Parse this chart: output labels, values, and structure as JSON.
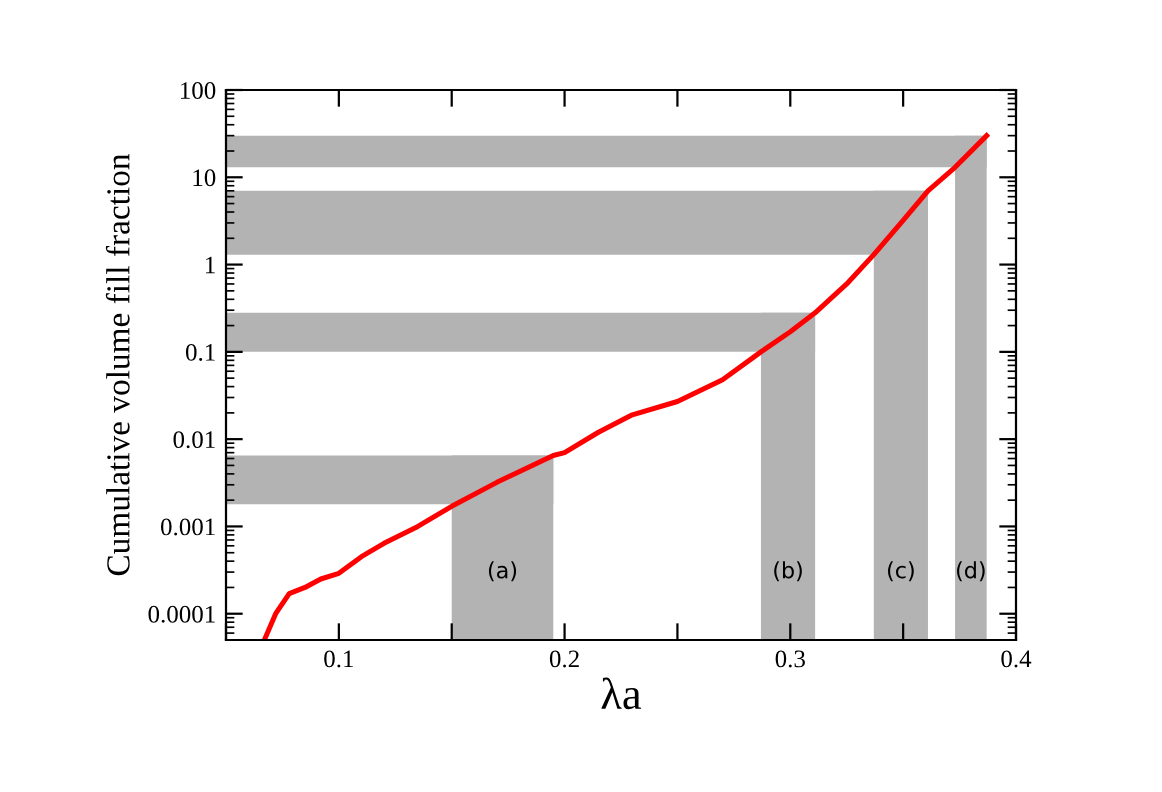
{
  "chart_data": {
    "type": "line",
    "xlabel": "λa",
    "ylabel": "Cumulative volume fill fraction",
    "log": "y",
    "xlim": [
      0.05,
      0.4
    ],
    "ylim": [
      5e-05,
      100
    ],
    "xticks": [
      {
        "value": 0.05,
        "label": null
      },
      0.1,
      {
        "value": 0.15,
        "label": null
      },
      0.2,
      {
        "value": 0.25,
        "label": null
      },
      0.3,
      {
        "value": 0.35,
        "label": null
      },
      0.4
    ],
    "yticks": [
      0.0001,
      0.001,
      0.01,
      0.1,
      1,
      10,
      100
    ],
    "grid": false,
    "legend": false,
    "marker": "none",
    "line_style": "solid",
    "series": [
      {
        "color": "#ff0000",
        "x": [
          0.067,
          0.072,
          0.078,
          0.085,
          0.092,
          0.1,
          0.11,
          0.12,
          0.135,
          0.15,
          0.17,
          0.195,
          0.2,
          0.215,
          0.23,
          0.25,
          0.27,
          0.287,
          0.3,
          0.311,
          0.325,
          0.337,
          0.35,
          0.361,
          0.373,
          0.387
        ],
        "values": [
          5e-05,
          0.0001,
          0.00017,
          0.0002,
          0.00025,
          0.00029,
          0.00045,
          0.00064,
          0.001,
          0.0017,
          0.0032,
          0.0065,
          0.007,
          0.012,
          0.019,
          0.027,
          0.048,
          0.1,
          0.17,
          0.28,
          0.6,
          1.3,
          3.2,
          7,
          13,
          30
        ]
      }
    ],
    "bands": [
      {
        "axis": "x",
        "from": 0.15,
        "to": 0.195,
        "label": "(a)",
        "color": "#b3b3b3"
      },
      {
        "axis": "x",
        "from": 0.287,
        "to": 0.311,
        "label": "(b)",
        "color": "#b3b3b3"
      },
      {
        "axis": "x",
        "from": 0.337,
        "to": 0.361,
        "label": "(c)",
        "color": "#b3b3b3"
      },
      {
        "axis": "x",
        "from": 0.373,
        "to": 0.387,
        "label": "(d)",
        "color": "#b3b3b3"
      },
      {
        "axis": "y",
        "from": 0.0018,
        "to": 0.0065,
        "color": "#b3b3b3"
      },
      {
        "axis": "y",
        "from": 0.1,
        "to": 0.28,
        "color": "#b3b3b3"
      },
      {
        "axis": "y",
        "from": 1.3,
        "to": 7,
        "color": "#b3b3b3"
      },
      {
        "axis": "y",
        "from": 13,
        "to": 30,
        "color": "#b3b3b3"
      }
    ]
  }
}
